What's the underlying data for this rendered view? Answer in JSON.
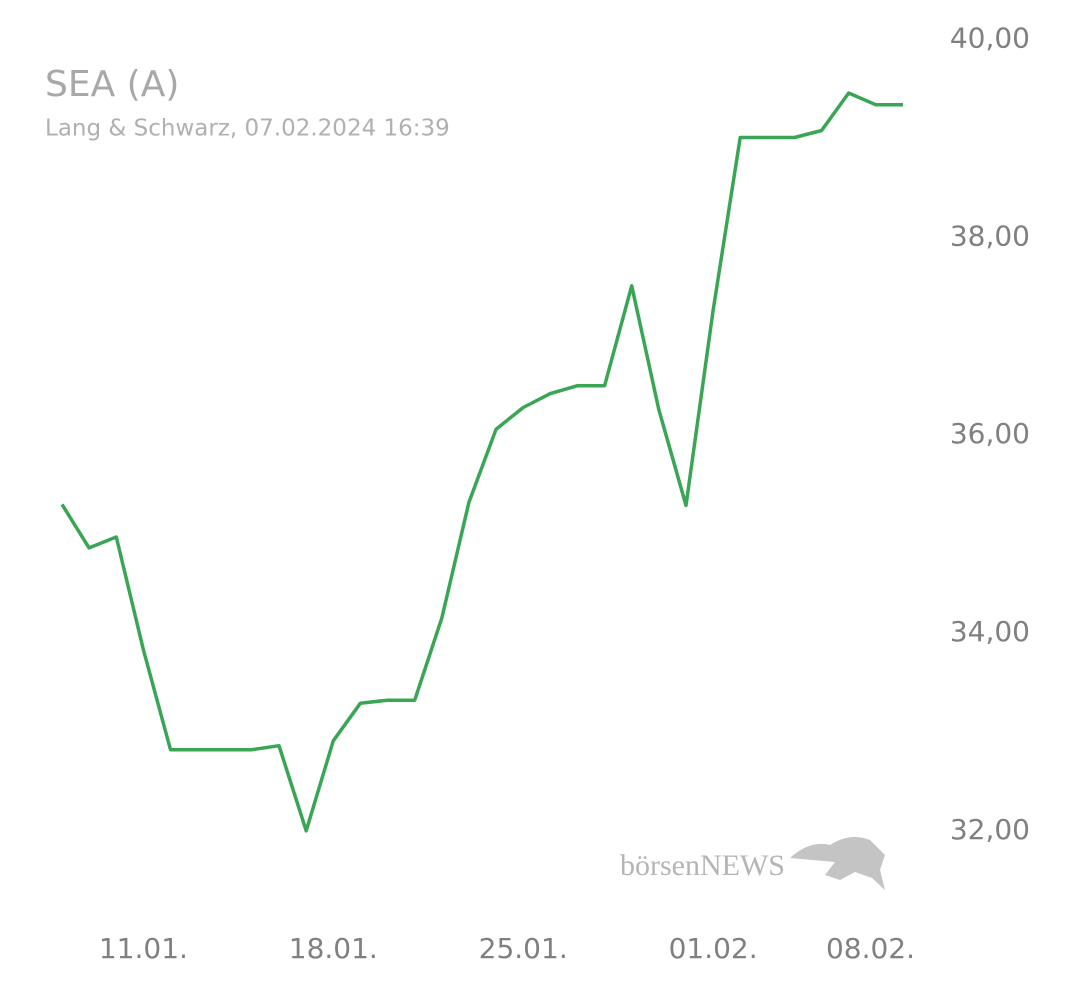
{
  "chart_data": {
    "type": "line",
    "title": "SEA (A)",
    "subtitle": "Lang & Schwarz, 07.02.2024 16:39",
    "watermark": "börsenNEWS",
    "categories": [
      null,
      null,
      null,
      "11.01.",
      null,
      null,
      null,
      null,
      null,
      null,
      "18.01.",
      null,
      null,
      null,
      null,
      null,
      null,
      "25.01.",
      null,
      null,
      null,
      null,
      null,
      null,
      "01.02.",
      null,
      null,
      null,
      null,
      null,
      null,
      "08.02."
    ],
    "series": [
      {
        "name": "SEA (A)",
        "color": "#3aa655",
        "values": [
          35.3,
          34.86,
          34.97,
          33.83,
          32.82,
          32.82,
          32.82,
          32.82,
          32.86,
          32.0,
          32.91,
          33.29,
          33.32,
          33.32,
          34.15,
          35.32,
          36.06,
          36.28,
          36.42,
          36.5,
          36.5,
          37.51,
          36.26,
          35.29,
          37.26,
          39.01,
          39.01,
          39.01,
          39.08,
          39.46,
          39.34,
          39.34
        ]
      }
    ],
    "ylim": [
      31.3,
      40.4
    ],
    "yticks": [
      {
        "value": 32,
        "label": "32,00"
      },
      {
        "value": 34,
        "label": "34,00"
      },
      {
        "value": 36,
        "label": "36,00"
      },
      {
        "value": 38,
        "label": "38,00"
      },
      {
        "value": 40,
        "label": "40,00"
      }
    ]
  }
}
